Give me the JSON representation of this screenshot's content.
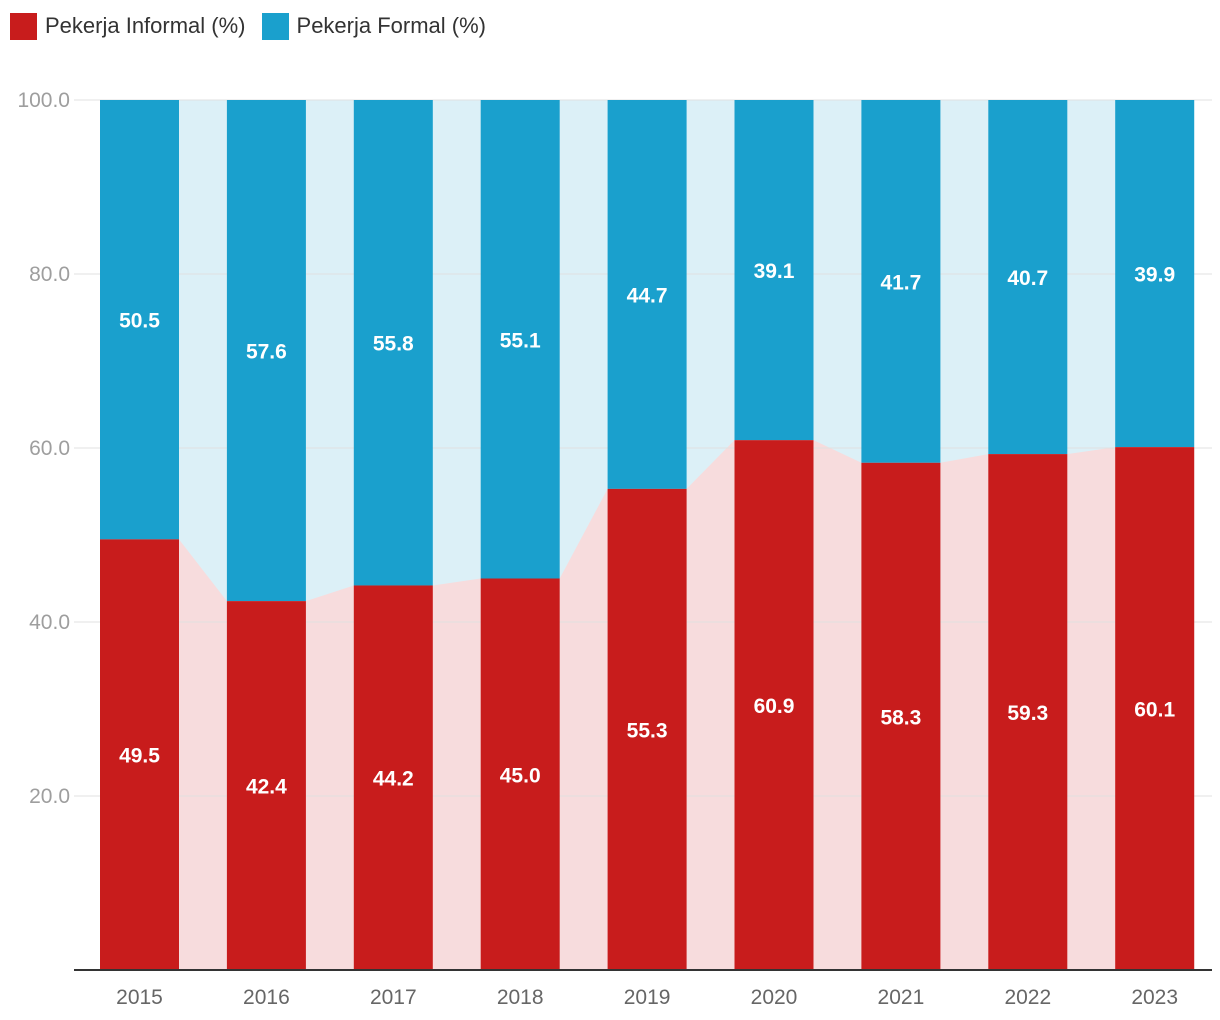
{
  "legend": [
    {
      "name": "Pekerja Informal (%)",
      "color": "#c81c1c"
    },
    {
      "name": "Pekerja Formal (%)",
      "color": "#1aa0cd"
    }
  ],
  "chart_data": {
    "type": "bar",
    "stacked": true,
    "categories": [
      "2015",
      "2016",
      "2017",
      "2018",
      "2019",
      "2020",
      "2021",
      "2022",
      "2023"
    ],
    "series": [
      {
        "name": "Pekerja Informal (%)",
        "values": [
          49.5,
          42.4,
          44.2,
          45.0,
          55.3,
          60.9,
          58.3,
          59.3,
          60.1
        ],
        "labels": [
          "49.5",
          "42.4",
          "44.2",
          "45.0",
          "55.3",
          "60.9",
          "58.3",
          "59.3",
          "60.1"
        ],
        "color": "#c81c1c",
        "area_color": "#f7dcdd"
      },
      {
        "name": "Pekerja Formal (%)",
        "values": [
          50.5,
          57.6,
          55.8,
          55.1,
          44.7,
          39.1,
          41.7,
          40.7,
          39.9
        ],
        "labels": [
          "50.5",
          "57.6",
          "55.8",
          "55.1",
          "44.7",
          "39.1",
          "41.7",
          "40.7",
          "39.9"
        ],
        "color": "#1aa0cd",
        "area_color": "#dcf0f7"
      }
    ],
    "y_ticks": [
      "20.0",
      "40.0",
      "60.0",
      "80.0",
      "100.0"
    ],
    "y_tick_values": [
      20,
      40,
      60,
      80,
      100
    ],
    "ylim": [
      0,
      100
    ],
    "grid": true,
    "legend_position": "top-left"
  }
}
